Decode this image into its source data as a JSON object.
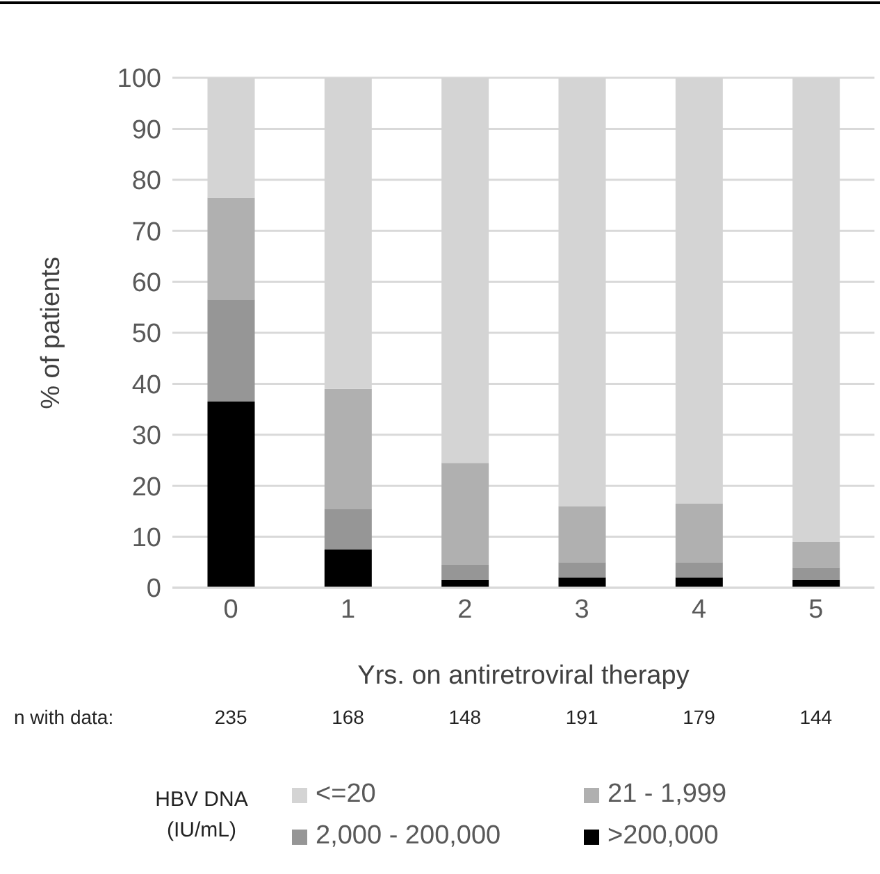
{
  "chart_data": {
    "type": "bar",
    "stacked": true,
    "categories": [
      "0",
      "1",
      "2",
      "3",
      "4",
      "5"
    ],
    "series": [
      {
        "name": ">200,000",
        "color": "#000000",
        "values": [
          36.5,
          7.5,
          1.5,
          2,
          2,
          1.5
        ]
      },
      {
        "name": "2,000 - 200,000",
        "color": "#969696",
        "values": [
          20,
          8,
          3,
          3,
          3,
          2.5
        ]
      },
      {
        "name": "21 - 1,999",
        "color": "#b0b0b0",
        "values": [
          20,
          23.5,
          20,
          11,
          11.5,
          5
        ]
      },
      {
        "name": "<=20",
        "color": "#d4d4d4",
        "values": [
          23.5,
          61,
          75.5,
          84,
          83.5,
          91
        ]
      }
    ],
    "xlabel": "Yrs. on antiretroviral therapy",
    "ylabel": "% of patients",
    "ylim": [
      0,
      100
    ],
    "yticks": [
      0,
      10,
      20,
      30,
      40,
      50,
      60,
      70,
      80,
      90,
      100
    ],
    "grid": "y",
    "legend": "bottom",
    "legend_title": "HBV DNA (IU/mL)",
    "annotations": [
      "n with data:",
      "235",
      "168",
      "148",
      "191",
      "179",
      "144"
    ]
  }
}
